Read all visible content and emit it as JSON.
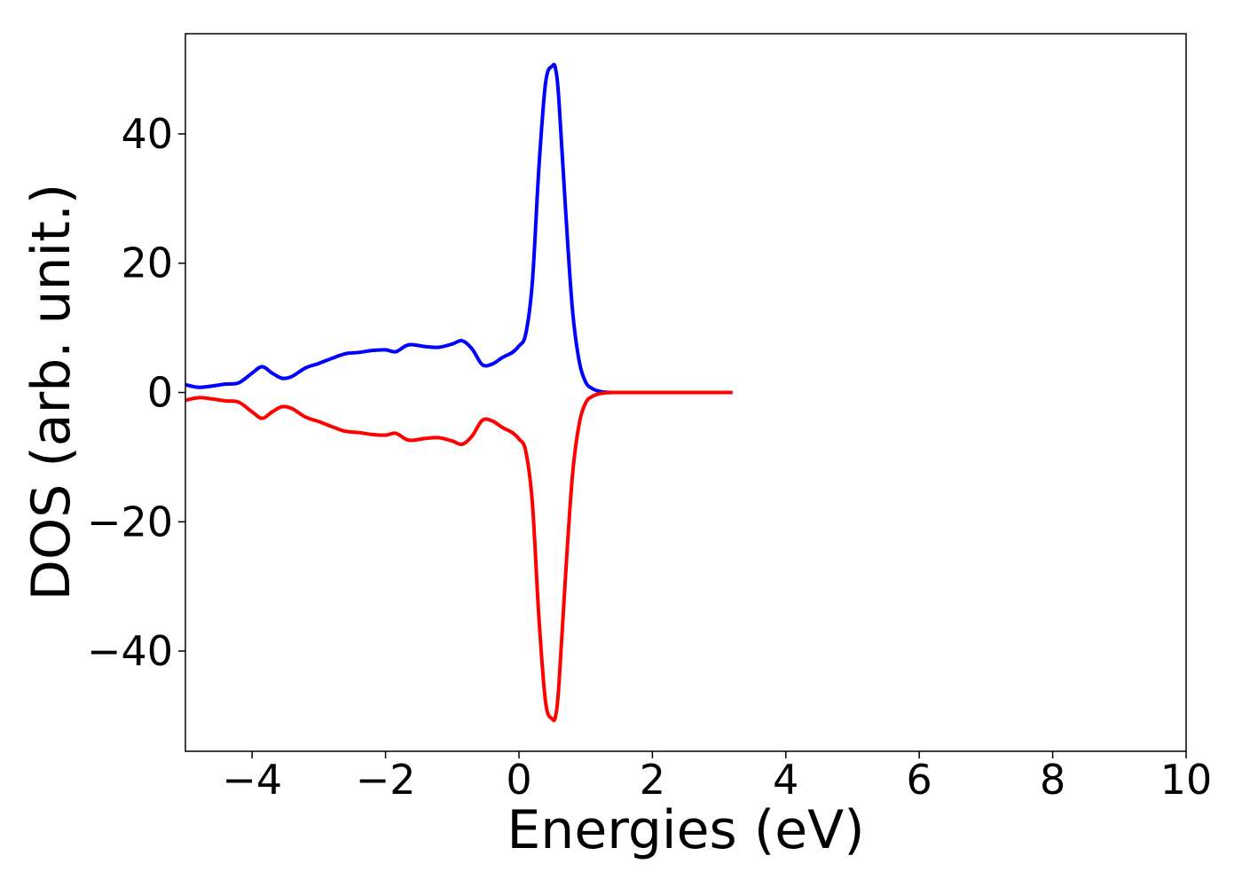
{
  "chart_data": {
    "type": "line",
    "xlabel": "Energies (eV)",
    "ylabel": "DOS (arb. unit.)",
    "xlim": [
      -5,
      10
    ],
    "ylim": [
      -55.5,
      55.5
    ],
    "xticks": [
      -4,
      -2,
      0,
      2,
      4,
      6,
      8,
      10
    ],
    "xtick_labels": [
      "−4",
      "−2",
      "0",
      "2",
      "4",
      "6",
      "8",
      "10"
    ],
    "yticks": [
      -40,
      -20,
      0,
      20,
      40
    ],
    "ytick_labels": [
      "−40",
      "−20",
      "0",
      "20",
      "40"
    ],
    "grid": false,
    "legend": "none",
    "series": [
      {
        "color": "#0000ff",
        "x": [
          -5.0,
          -4.8,
          -4.6,
          -4.4,
          -4.2,
          -4.0,
          -3.85,
          -3.7,
          -3.55,
          -3.4,
          -3.2,
          -3.0,
          -2.8,
          -2.6,
          -2.4,
          -2.2,
          -2.0,
          -1.85,
          -1.7,
          -1.6,
          -1.4,
          -1.2,
          -1.0,
          -0.85,
          -0.7,
          -0.55,
          -0.4,
          -0.25,
          -0.1,
          0.0,
          0.1,
          0.2,
          0.3,
          0.4,
          0.5,
          0.55,
          0.6,
          0.7,
          0.8,
          0.9,
          1.0,
          1.1,
          1.2,
          1.3,
          1.4,
          1.5,
          2.0,
          2.5,
          3.0,
          3.2
        ],
        "y": [
          1.2,
          0.8,
          1.0,
          1.3,
          1.5,
          3.0,
          4.0,
          3.0,
          2.2,
          2.5,
          3.8,
          4.5,
          5.3,
          6.0,
          6.2,
          6.5,
          6.6,
          6.3,
          7.2,
          7.4,
          7.1,
          7.0,
          7.5,
          8.0,
          6.7,
          4.3,
          4.4,
          5.4,
          6.2,
          7.2,
          9.0,
          17.0,
          35.0,
          48.0,
          50.5,
          50.0,
          45.0,
          28.0,
          13.0,
          5.0,
          1.6,
          0.6,
          0.2,
          0.05,
          0.0,
          0.0,
          0.0,
          0.0,
          0.0,
          0.0
        ]
      },
      {
        "color": "#ff0000",
        "x": [
          -5.0,
          -4.8,
          -4.6,
          -4.4,
          -4.2,
          -4.0,
          -3.85,
          -3.7,
          -3.55,
          -3.4,
          -3.2,
          -3.0,
          -2.8,
          -2.6,
          -2.4,
          -2.2,
          -2.0,
          -1.85,
          -1.7,
          -1.6,
          -1.4,
          -1.2,
          -1.0,
          -0.85,
          -0.7,
          -0.55,
          -0.4,
          -0.25,
          -0.1,
          0.0,
          0.1,
          0.2,
          0.3,
          0.4,
          0.5,
          0.55,
          0.6,
          0.7,
          0.8,
          0.9,
          1.0,
          1.1,
          1.2,
          1.3,
          1.4,
          1.5,
          2.0,
          2.5,
          3.0,
          3.2
        ],
        "y": [
          -1.2,
          -0.8,
          -1.0,
          -1.3,
          -1.5,
          -3.0,
          -4.0,
          -3.0,
          -2.2,
          -2.5,
          -3.8,
          -4.5,
          -5.3,
          -6.0,
          -6.2,
          -6.5,
          -6.6,
          -6.3,
          -7.2,
          -7.4,
          -7.1,
          -7.0,
          -7.5,
          -8.0,
          -6.7,
          -4.3,
          -4.4,
          -5.4,
          -6.2,
          -7.2,
          -9.0,
          -17.0,
          -35.0,
          -48.0,
          -50.5,
          -50.0,
          -45.0,
          -28.0,
          -13.0,
          -5.0,
          -1.6,
          -0.6,
          -0.2,
          -0.05,
          0.0,
          0.0,
          0.0,
          0.0,
          0.0,
          0.0
        ]
      }
    ]
  }
}
